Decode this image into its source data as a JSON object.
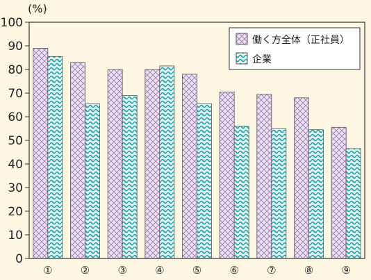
{
  "chart_data": {
    "type": "bar",
    "yunit": "(%)",
    "ylim": [
      0,
      100
    ],
    "yticks": [
      0,
      10,
      20,
      30,
      40,
      50,
      60,
      70,
      80,
      90,
      100
    ],
    "categories": [
      "①",
      "②",
      "③",
      "④",
      "⑤",
      "⑥",
      "⑦",
      "⑧",
      "⑨"
    ],
    "series": [
      {
        "name": "働く方全体（正社員）",
        "values": [
          89,
          83,
          80,
          80,
          78,
          70.5,
          69.5,
          68,
          55.5
        ],
        "color": "#e3d2ea",
        "pattern": "crosshatch"
      },
      {
        "name": "企業",
        "values": [
          85.5,
          65.5,
          69,
          81.5,
          65.5,
          56,
          55,
          54.5,
          46.5
        ],
        "color": "#2db3b8",
        "pattern": "wave"
      }
    ],
    "legend": "top-right",
    "grid": false
  }
}
